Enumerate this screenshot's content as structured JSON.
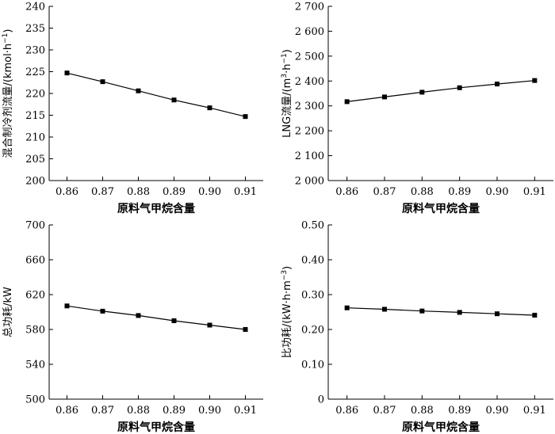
{
  "chart_data": [
    {
      "type": "line",
      "xlabel": "原料气甲烷含量",
      "ylabel": {
        "text": "混合制冷剂流量/(kmol·h",
        "sup": "−1",
        "tail": ")"
      },
      "x": [
        0.86,
        0.87,
        0.88,
        0.89,
        0.9,
        0.91
      ],
      "xlim": [
        0.855,
        0.915
      ],
      "xticks": [
        "0.86",
        "0.87",
        "0.88",
        "0.89",
        "0.90",
        "0.91"
      ],
      "ylim": [
        200,
        240
      ],
      "yticks": [
        "200",
        "205",
        "210",
        "215",
        "220",
        "225",
        "230",
        "235",
        "240"
      ],
      "series": [
        {
          "values": [
            224.7,
            222.7,
            220.6,
            218.5,
            216.7,
            214.7
          ]
        }
      ]
    },
    {
      "type": "line",
      "xlabel": "原料气甲烷含量",
      "ylabel": {
        "text": "LNG流量/(m",
        "sup": "3",
        "mid": "·h",
        "sup2": "−1",
        "tail": ")"
      },
      "x": [
        0.86,
        0.87,
        0.88,
        0.89,
        0.9,
        0.91
      ],
      "xlim": [
        0.855,
        0.915
      ],
      "xticks": [
        "0.86",
        "0.87",
        "0.88",
        "0.89",
        "0.90",
        "0.91"
      ],
      "ylim": [
        2000,
        2700
      ],
      "yticks": [
        "2 000",
        "2 100",
        "2 200",
        "2 300",
        "2 400",
        "2 500",
        "2 600",
        "2 700"
      ],
      "series": [
        {
          "values": [
            2317,
            2336,
            2355,
            2373,
            2388,
            2402
          ]
        }
      ]
    },
    {
      "type": "line",
      "xlabel": "原料气甲烷含量",
      "ylabel": {
        "text": "总功耗/kW"
      },
      "x": [
        0.86,
        0.87,
        0.88,
        0.89,
        0.9,
        0.91
      ],
      "xlim": [
        0.855,
        0.915
      ],
      "xticks": [
        "0.86",
        "0.87",
        "0.88",
        "0.89",
        "0.90",
        "0.91"
      ],
      "ylim": [
        500,
        700
      ],
      "yticks": [
        "500",
        "540",
        "580",
        "620",
        "660",
        "700"
      ],
      "series": [
        {
          "values": [
            607,
            601,
            596,
            590,
            585,
            580
          ]
        }
      ]
    },
    {
      "type": "line",
      "xlabel": "原料气甲烷含量",
      "ylabel": {
        "text": "比功耗/(kW·h·m",
        "sup": "−3",
        "tail": ")"
      },
      "x": [
        0.86,
        0.87,
        0.88,
        0.89,
        0.9,
        0.91
      ],
      "xlim": [
        0.855,
        0.915
      ],
      "xticks": [
        "0.86",
        "0.87",
        "0.88",
        "0.89",
        "0.90",
        "0.91"
      ],
      "ylim": [
        0,
        0.5
      ],
      "yticks": [
        "0",
        "0.10",
        "0.20",
        "0.30",
        "0.40",
        "0.50"
      ],
      "series": [
        {
          "values": [
            0.262,
            0.258,
            0.253,
            0.249,
            0.245,
            0.241
          ]
        }
      ]
    }
  ]
}
